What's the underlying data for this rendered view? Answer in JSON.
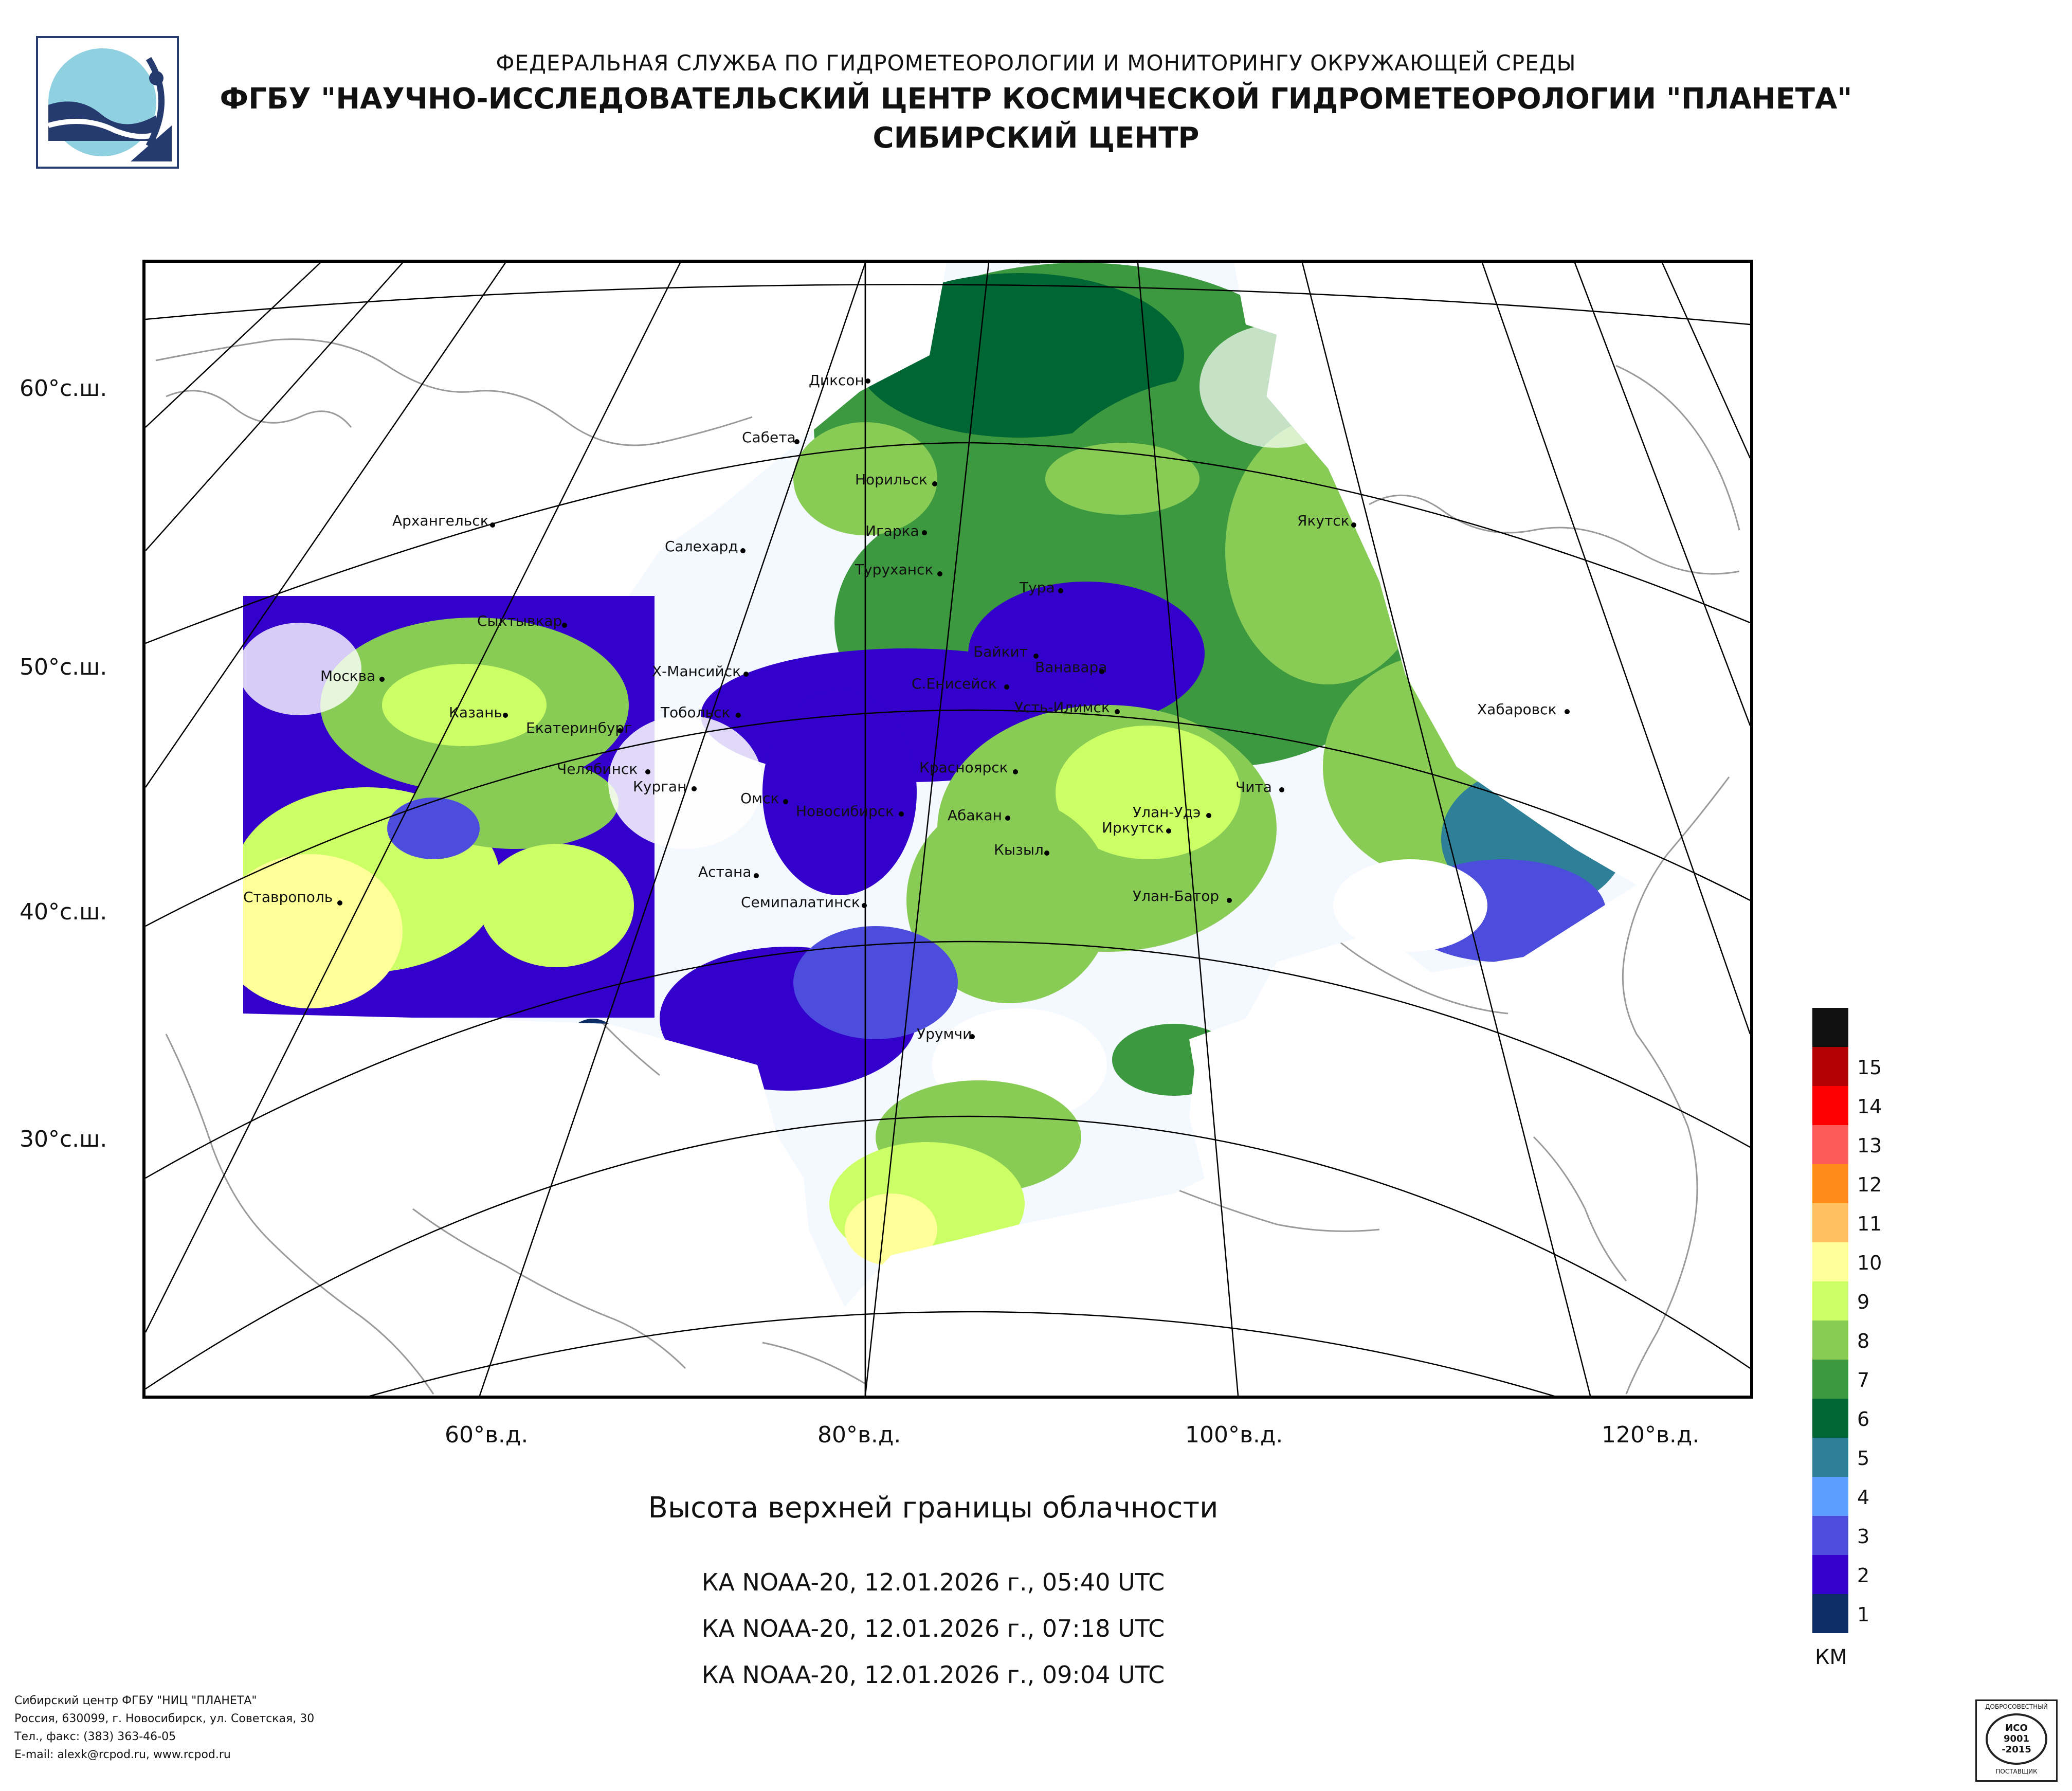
{
  "header": {
    "line1": "ФЕДЕРАЛЬНАЯ СЛУЖБА ПО ГИДРОМЕТЕОРОЛОГИИ И МОНИТОРИНГУ ОКРУЖАЮЩЕЙ СРЕДЫ",
    "line2": "ФГБУ \"НАУЧНО-ИССЛЕДОВАТЕЛЬСКИЙ ЦЕНТР КОСМИЧЕСКОЙ ГИДРОМЕТЕОРОЛОГИИ \"ПЛАНЕТА\"",
    "line3": "СИБИРСКИЙ ЦЕНТР"
  },
  "map": {
    "lat_labels": [
      "60°с.ш.",
      "50°с.ш.",
      "40°с.ш.",
      "30°с.ш."
    ],
    "lon_labels": [
      "60°в.д.",
      "80°в.д.",
      "100°в.д.",
      "120°в.д."
    ],
    "cities": [
      "Диксон",
      "Сабета",
      "Норильск",
      "Архангельск",
      "Игарка",
      "Якутск",
      "Салехард",
      "Туруханск",
      "Тура",
      "Сыктывкар",
      "Байкит",
      "Ванавара",
      "Х-Мансийск",
      "С.Енисейск",
      "Москва",
      "Усть-Илимск",
      "Казань",
      "Тобольск",
      "Хабаровск",
      "Екатеринбург",
      "Красноярск",
      "Челябинск",
      "Курган",
      "Чита",
      "Омск",
      "Новосибирск",
      "Абакан",
      "Улан-Удэ",
      "Иркутск",
      "Кызыл",
      "Астана",
      "Ставрополь",
      "Улан-Батор",
      "Семипалатинск",
      "Урумчи"
    ]
  },
  "title": "Высота верхней границы облачности",
  "passes": [
    "КА NOAA-20, 12.01.2026 г., 05:40 UTC",
    "КА NOAA-20, 12.01.2026 г., 07:18 UTC",
    "КА NOAA-20, 12.01.2026 г., 09:04 UTC"
  ],
  "legend": {
    "unit": "КМ",
    "levels": [
      {
        "label": "",
        "color": "#111111"
      },
      {
        "label": "15",
        "color": "#b30000"
      },
      {
        "label": "14",
        "color": "#ff0000"
      },
      {
        "label": "13",
        "color": "#ff5a5a"
      },
      {
        "label": "12",
        "color": "#ff8c1a"
      },
      {
        "label": "11",
        "color": "#ffc060"
      },
      {
        "label": "10",
        "color": "#ffff99"
      },
      {
        "label": "9",
        "color": "#ccff66"
      },
      {
        "label": "8",
        "color": "#88cc55"
      },
      {
        "label": "7",
        "color": "#3d9940"
      },
      {
        "label": "6",
        "color": "#006633"
      },
      {
        "label": "5",
        "color": "#2e8099"
      },
      {
        "label": "4",
        "color": "#5c9dff"
      },
      {
        "label": "3",
        "color": "#4d4ddd"
      },
      {
        "label": "2",
        "color": "#3300cc"
      },
      {
        "label": "1",
        "color": "#0d2d66"
      }
    ]
  },
  "footer": [
    "Сибирский центр ФГБУ \"НИЦ \"ПЛАНЕТА\"",
    "Россия, 630099, г. Новосибирск, ул. Советская, 30",
    "Тел., факс: (383) 363-46-05",
    "E-mail: alexk@rcpod.ru, www.rcpod.ru"
  ],
  "iso_badge": {
    "top": "ДОБРОСОВЕСТНЫЙ",
    "line1": "ИСО",
    "line2": "9001",
    "line3": "-2015",
    "bottom": "ПОСТАВЩИК"
  }
}
